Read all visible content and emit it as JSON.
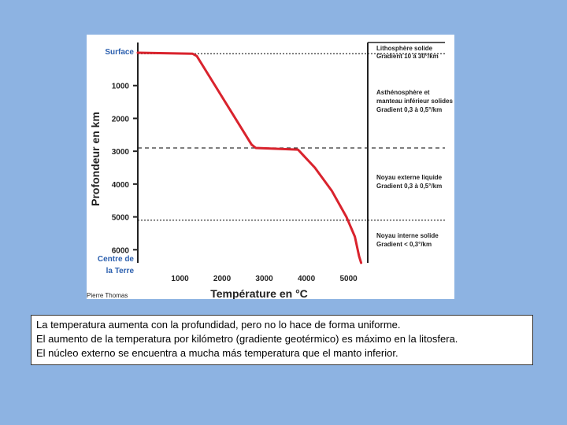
{
  "chart_data": {
    "type": "line",
    "xlabel": "Température en °C",
    "ylabel": "Profondeur en km",
    "xlim": [
      0,
      5400
    ],
    "ylim": [
      0,
      6400
    ],
    "x_ticks": [
      "1000",
      "2000",
      "3000",
      "4000",
      "5000"
    ],
    "y_ticks": [
      "1000",
      "2000",
      "3000",
      "4000",
      "5000",
      "6000"
    ],
    "y_top_label": "Surface",
    "y_bottom_label": [
      "Centre de",
      "la Terre"
    ],
    "series": [
      {
        "color": "#d9232d",
        "points": [
          {
            "x": 0,
            "y": 0
          },
          {
            "x": 1300,
            "y": 30
          },
          {
            "x": 1400,
            "y": 100
          },
          {
            "x": 2700,
            "y": 2800
          },
          {
            "x": 2800,
            "y": 2900
          },
          {
            "x": 3800,
            "y": 2950
          },
          {
            "x": 4200,
            "y": 3500
          },
          {
            "x": 4600,
            "y": 4200
          },
          {
            "x": 4950,
            "y": 5000
          },
          {
            "x": 5150,
            "y": 5600
          },
          {
            "x": 5250,
            "y": 6200
          },
          {
            "x": 5300,
            "y": 6400
          }
        ]
      }
    ],
    "boundaries": [
      {
        "depth": 30,
        "style": "dotted"
      },
      {
        "depth": 2900,
        "style": "dashed"
      },
      {
        "depth": 5100,
        "style": "dotted"
      }
    ],
    "annotations": [
      [
        "Lithosphère solide",
        "Gradient 10 à 30°/km"
      ],
      [
        "Asthénosphère et",
        "manteau inférieur solides",
        "Gradient 0,3 à 0,5°/km"
      ],
      [
        "Noyau externe liquide",
        "Gradient 0,3 à 0,5°/km"
      ],
      [
        "Noyau interne solide",
        "Gradient < 0,3°/km"
      ]
    ]
  },
  "credit": "Pierre Thomas",
  "caption": [
    "La temperatura aumenta con la profundidad, pero no lo hace de forma uniforme.",
    "El aumento de la temperatura por kilómetro (gradiente geotérmico) es máximo en la litosfera.",
    "El núcleo externo se encuentra a mucha más temperatura que el manto inferior."
  ],
  "colors": {
    "background": "#8db3e2",
    "curve": "#d9232d",
    "label_blue": "#2b5fae"
  }
}
